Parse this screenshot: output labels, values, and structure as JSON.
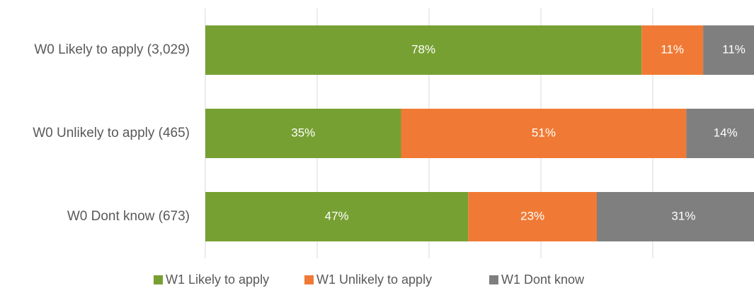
{
  "chart_data": {
    "type": "stacked-bar-horizontal",
    "categories": [
      "W0 Likely to apply (3,029)",
      "W0 Unlikely to apply (465)",
      "W0 Dont know (673)"
    ],
    "series": [
      {
        "name": "W1 Likely to apply",
        "color": "#77a033",
        "values": [
          78,
          35,
          47
        ],
        "value_labels": [
          "78%",
          "35%",
          "47%"
        ]
      },
      {
        "name": "W1 Unlikely to apply",
        "color": "#f07a35",
        "values": [
          11,
          51,
          23
        ],
        "value_labels": [
          "11%",
          "51%",
          "23%"
        ]
      },
      {
        "name": "W1 Dont know",
        "color": "#7f7f7f",
        "values": [
          11,
          14,
          31
        ],
        "value_labels": [
          "11%",
          "14%",
          "31%"
        ]
      }
    ],
    "xlim": [
      0,
      100
    ],
    "xticks": [
      0,
      20,
      40,
      60,
      80,
      100
    ],
    "grid": true,
    "legend": "bottom"
  }
}
